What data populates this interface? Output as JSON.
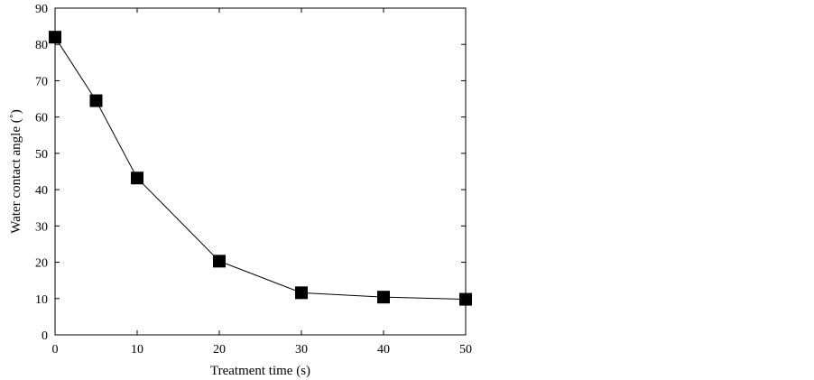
{
  "chart_data": {
    "type": "line",
    "title": "",
    "xlabel": "Treatment time (s)",
    "ylabel": "Water contact angle (˚)",
    "xlim": [
      0,
      50
    ],
    "ylim": [
      0,
      90
    ],
    "xticks": [
      0,
      10,
      20,
      30,
      40,
      50
    ],
    "yticks": [
      0,
      10,
      20,
      30,
      40,
      50,
      60,
      70,
      80,
      90
    ],
    "grid": false,
    "marker": "square",
    "series": [
      {
        "x": [
          0,
          5,
          10,
          20,
          30,
          40,
          50
        ],
        "y": [
          82,
          64.5,
          43.2,
          20.3,
          11.6,
          10.4,
          9.8
        ],
        "color": "#000000"
      }
    ]
  }
}
